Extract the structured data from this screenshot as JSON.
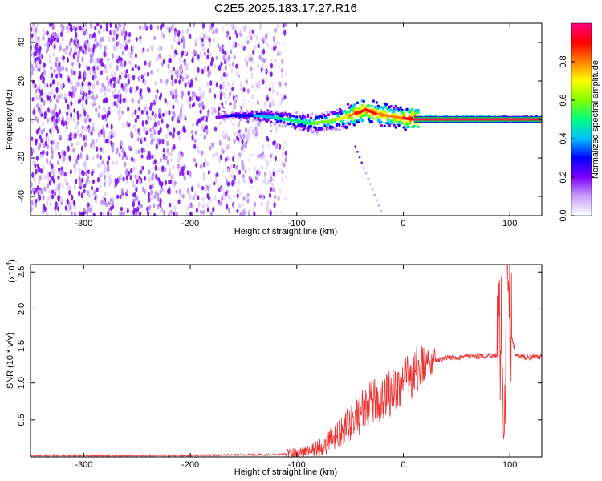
{
  "title": "C2E5.2025.183.17.27.R16",
  "chart_data": [
    {
      "type": "heatmap",
      "xlabel": "Height of straight line (km)",
      "ylabel": "Frequency (Hz)",
      "xlim": [
        -350,
        130
      ],
      "ylim": [
        -50,
        50
      ],
      "xticks": [
        -300,
        -200,
        -100,
        0,
        100
      ],
      "yticks": [
        -40,
        -20,
        0,
        20,
        40
      ],
      "colorbar": {
        "label": "Normalized spectral amplitude",
        "range": [
          0.0,
          1.0
        ],
        "ticks": [
          "0.0",
          "0.2",
          "0.4",
          "0.6",
          "0.8"
        ],
        "colors": [
          "#ffffff",
          "#c8a0ff",
          "#8000ff",
          "#0000ff",
          "#00c0ff",
          "#00ff80",
          "#80ff00",
          "#ffff00",
          "#ff8000",
          "#ff0000",
          "#ff0080"
        ]
      },
      "center_line": {
        "x": [
          -175,
          -160,
          -140,
          -120,
          -100,
          -85,
          -70,
          -55,
          -45,
          -35,
          -25,
          -15,
          -5,
          10,
          90,
          100,
          130
        ],
        "y": [
          1,
          2,
          2,
          1,
          -1,
          -2,
          -1,
          1,
          3,
          5,
          3,
          2,
          1,
          0,
          0,
          0,
          0
        ],
        "amplitude": [
          0.15,
          0.3,
          0.35,
          0.45,
          0.5,
          0.55,
          0.6,
          0.7,
          0.85,
          0.9,
          0.85,
          0.8,
          0.8,
          0.95,
          0.95,
          0.6,
          0.95
        ]
      }
    },
    {
      "type": "line",
      "xlabel": "Height of straight line (km)",
      "ylabel": "SNR (10 * v/v)",
      "scale_label": "(x10",
      "scale_exp": "4",
      "scale_close": ")",
      "xlim": [
        -350,
        130
      ],
      "ylim": [
        0,
        2.6
      ],
      "xticks": [
        -300,
        -200,
        -100,
        0,
        100
      ],
      "yticks": [
        "0.5",
        "1.0",
        "1.5",
        "2.0",
        "2.5"
      ],
      "series": [
        {
          "color": "#ee3333",
          "x": [
            -350,
            -300,
            -250,
            -200,
            -150,
            -120,
            -100,
            -90,
            -80,
            -70,
            -60,
            -50,
            -40,
            -30,
            -20,
            -10,
            0,
            10,
            20,
            30,
            40,
            50,
            60,
            70,
            80,
            88,
            92,
            95,
            97,
            100,
            105,
            110,
            120,
            130
          ],
          "y": [
            0.02,
            0.02,
            0.02,
            0.02,
            0.03,
            0.03,
            0.05,
            0.08,
            0.12,
            0.2,
            0.3,
            0.45,
            0.6,
            0.7,
            0.8,
            0.9,
            1.0,
            1.15,
            1.25,
            1.3,
            1.33,
            1.35,
            1.36,
            1.36,
            1.37,
            1.37,
            1.6,
            0.3,
            2.5,
            1.8,
            1.4,
            1.35,
            1.35,
            1.35
          ]
        }
      ]
    }
  ]
}
